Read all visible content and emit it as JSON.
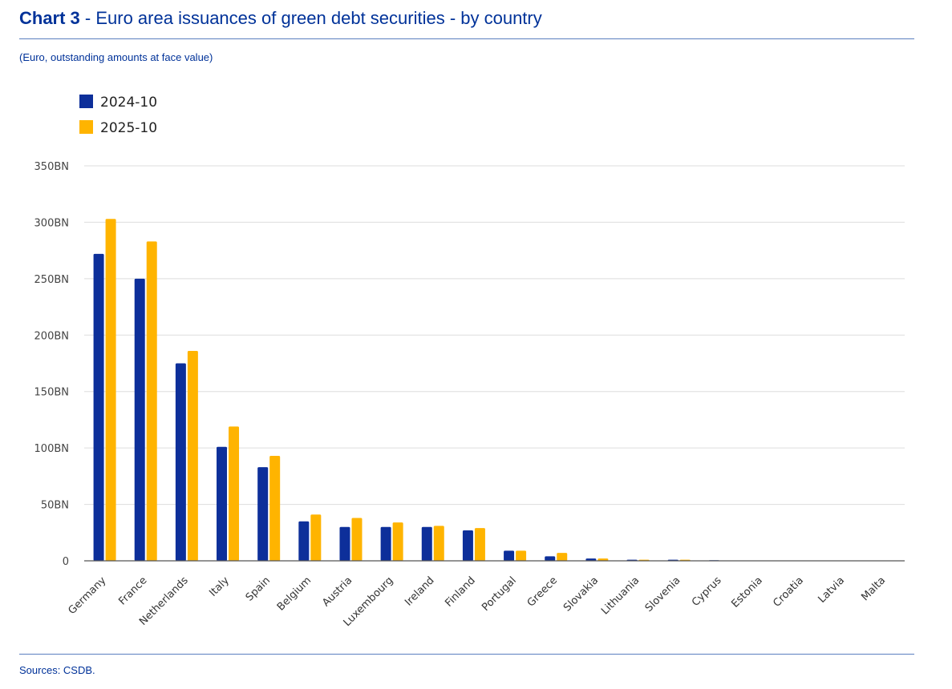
{
  "header": {
    "title_bold": "Chart 3",
    "title_rest": " - Euro area issuances of green debt securities - by country",
    "subtitle": "(Euro, outstanding amounts at face value)"
  },
  "footer": {
    "sources": "Sources: CSDB."
  },
  "colors": {
    "series_2024": "#0d2f9a",
    "series_2025": "#ffb400",
    "grid": "#dddddd",
    "axis": "#555555",
    "text_blue": "#003299"
  },
  "chart_data": {
    "type": "bar",
    "title": "Euro area issuances of green debt securities - by country",
    "ylabel": "",
    "xlabel": "",
    "ylim": [
      0,
      350
    ],
    "yticks": [
      0,
      50,
      100,
      150,
      200,
      250,
      300,
      350
    ],
    "ytick_labels": [
      "0",
      "50BN",
      "100BN",
      "150BN",
      "200BN",
      "250BN",
      "300BN",
      "350BN"
    ],
    "legend_position": "top-left",
    "categories": [
      "Germany",
      "France",
      "Netherlands",
      "Italy",
      "Spain",
      "Belgium",
      "Austria",
      "Luxembourg",
      "Ireland",
      "Finland",
      "Portugal",
      "Greece",
      "Slovakia",
      "Lithuania",
      "Slovenia",
      "Cyprus",
      "Estonia",
      "Croatia",
      "Latvia",
      "Malta"
    ],
    "series": [
      {
        "name": "2024-10",
        "values": [
          272,
          250,
          175,
          101,
          83,
          35,
          30,
          30,
          30,
          27,
          9,
          4,
          2,
          1,
          1,
          0.5,
          0.2,
          0.1,
          0.1,
          0.1
        ]
      },
      {
        "name": "2025-10",
        "values": [
          303,
          283,
          186,
          119,
          93,
          41,
          38,
          34,
          31,
          29,
          9,
          7,
          2,
          1,
          1,
          0.2,
          0.2,
          0.1,
          0.1,
          0.1
        ]
      }
    ]
  }
}
